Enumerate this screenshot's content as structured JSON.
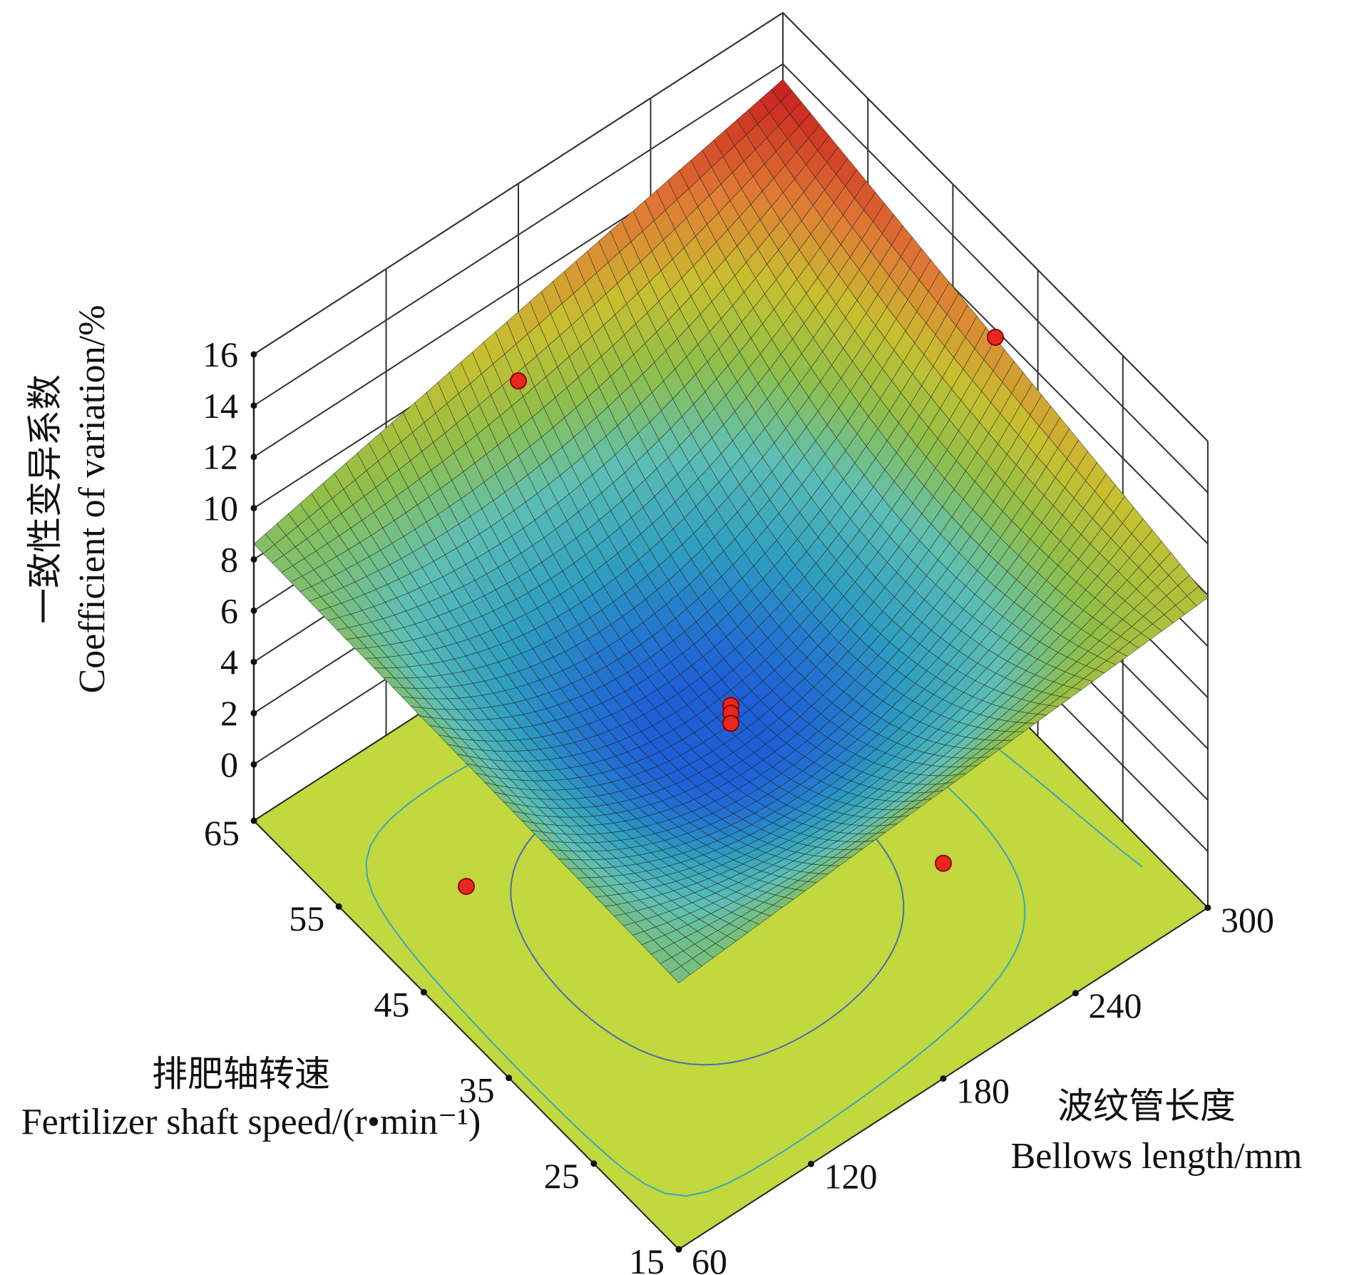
{
  "chart_data": {
    "type": "surface3d",
    "z_axis": {
      "label_zh": "一致性变异系数",
      "label_en": "Coefficient of variation/%",
      "range": [
        0,
        16
      ],
      "ticks": [
        "0",
        "2",
        "4",
        "6",
        "8",
        "10",
        "12",
        "14",
        "16"
      ]
    },
    "x_axis": {
      "label_zh": "排肥轴转速",
      "label_en": "Fertilizer shaft speed/(r•min⁻¹)",
      "range": [
        15,
        65
      ],
      "ticks": [
        "15",
        "25",
        "35",
        "45",
        "55",
        "65"
      ]
    },
    "y_axis": {
      "label_zh": "波纹管长度",
      "label_en": "Bellows length/mm",
      "range": [
        60,
        300
      ],
      "ticks": [
        "60",
        "120",
        "180",
        "240",
        "300"
      ]
    },
    "surface_corners": [
      {
        "shaft_speed": 15,
        "bellows_length": 60,
        "cv": 8.2
      },
      {
        "shaft_speed": 65,
        "bellows_length": 60,
        "cv": 8.6
      },
      {
        "shaft_speed": 65,
        "bellows_length": 300,
        "cv": 13.4
      },
      {
        "shaft_speed": 15,
        "bellows_length": 300,
        "cv": 9.9
      }
    ],
    "surface_minimum": {
      "shaft_speed": 40,
      "bellows_length": 180,
      "cv": 4.6
    },
    "design_points": [
      {
        "shaft_speed": 40,
        "bellows_length": 180,
        "cv": 4.0
      },
      {
        "shaft_speed": 40,
        "bellows_length": 180,
        "cv": 3.7
      },
      {
        "shaft_speed": 40,
        "bellows_length": 180,
        "cv": 3.3
      },
      {
        "shaft_speed": 65,
        "bellows_length": 180,
        "cv": 8.3
      },
      {
        "shaft_speed": 40,
        "bellows_length": 300,
        "cv": 11.7
      },
      {
        "shaft_speed": 15,
        "bellows_length": 180,
        "cv": 6.2
      },
      {
        "shaft_speed": 40,
        "bellows_length": 60,
        "cv": 3.6
      }
    ],
    "colormap": [
      "#1e5fd6",
      "#2f9fc0",
      "#5fbfb5",
      "#8fbf4a",
      "#c8c030",
      "#e07a35",
      "#c81e1e"
    ],
    "floor_color": "#c1d83e",
    "contour_levels": [
      6,
      8,
      10
    ]
  }
}
